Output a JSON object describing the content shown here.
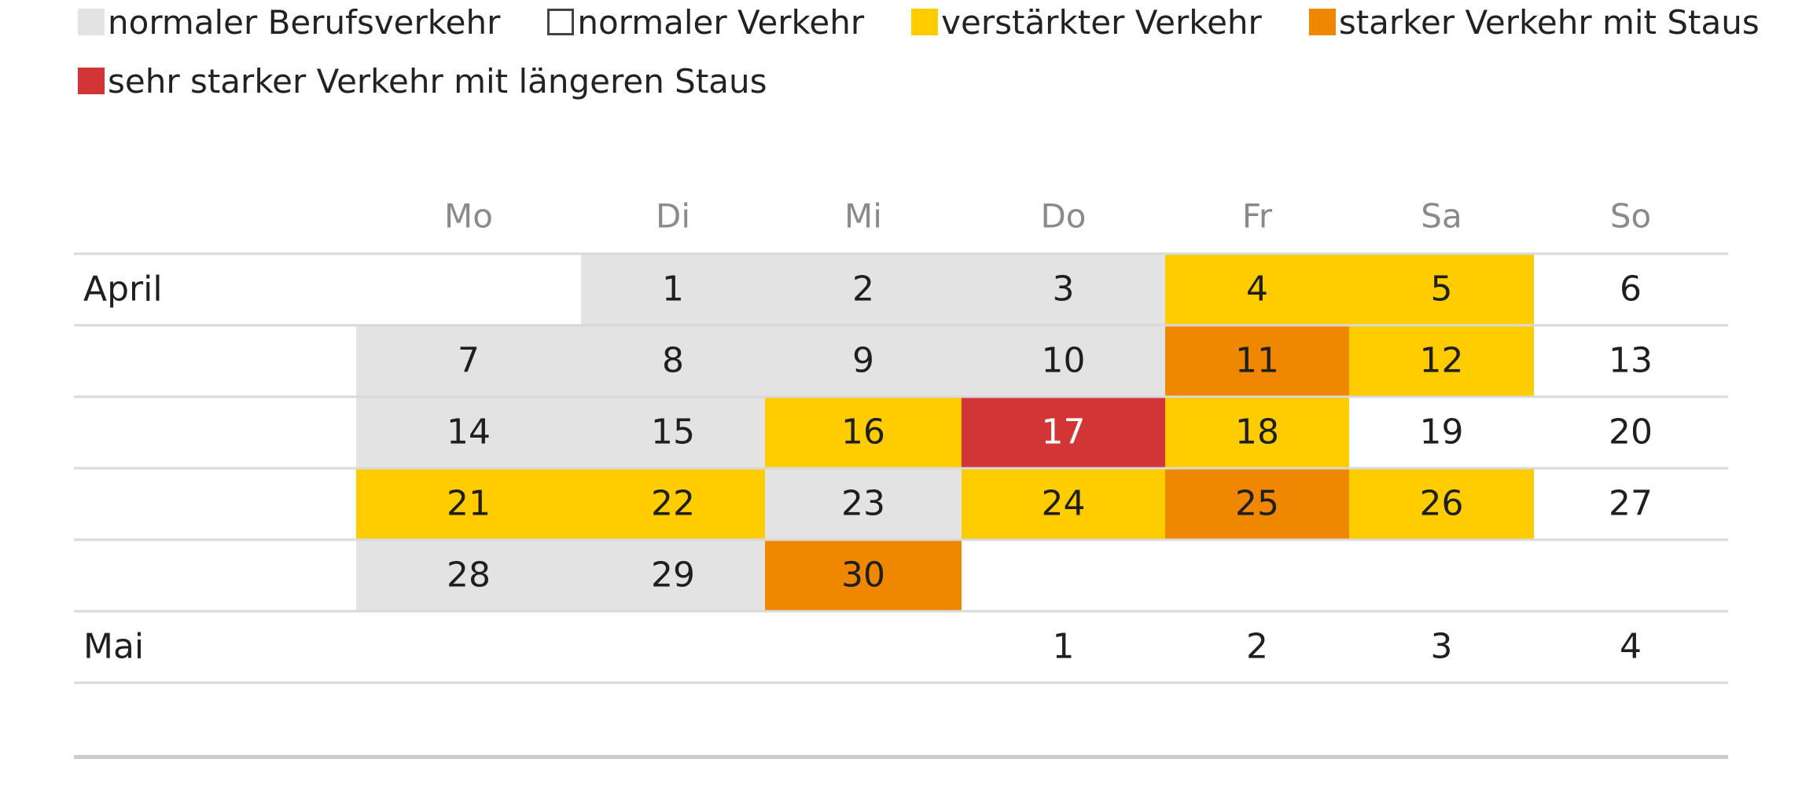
{
  "legend": [
    {
      "key": "berufsverkehr",
      "label": "normaler Berufsverkehr",
      "color": "#e3e3e3",
      "outline": false
    },
    {
      "key": "normal",
      "label": "normaler Verkehr",
      "color": "#ffffff",
      "outline": true
    },
    {
      "key": "verstaerkt",
      "label": "verstärkter Verkehr",
      "color": "#ffcc00",
      "outline": false
    },
    {
      "key": "stark",
      "label": "starker Verkehr mit Staus",
      "color": "#f08700",
      "outline": false
    },
    {
      "key": "sehrstark",
      "label": "sehr starker Verkehr mit längeren Staus",
      "color": "#d13535",
      "outline": false
    }
  ],
  "chart_data": {
    "type": "table",
    "columns": [
      "Mo",
      "Di",
      "Mi",
      "Do",
      "Fr",
      "Sa",
      "So"
    ],
    "rows": [
      {
        "label": "April",
        "cells": [
          {
            "day": "",
            "level": ""
          },
          {
            "day": "1",
            "level": "berufsverkehr"
          },
          {
            "day": "2",
            "level": "berufsverkehr"
          },
          {
            "day": "3",
            "level": "berufsverkehr"
          },
          {
            "day": "4",
            "level": "verstaerkt"
          },
          {
            "day": "5",
            "level": "verstaerkt"
          },
          {
            "day": "6",
            "level": "normal"
          }
        ]
      },
      {
        "label": "",
        "cells": [
          {
            "day": "7",
            "level": "berufsverkehr"
          },
          {
            "day": "8",
            "level": "berufsverkehr"
          },
          {
            "day": "9",
            "level": "berufsverkehr"
          },
          {
            "day": "10",
            "level": "berufsverkehr"
          },
          {
            "day": "11",
            "level": "stark"
          },
          {
            "day": "12",
            "level": "verstaerkt"
          },
          {
            "day": "13",
            "level": "normal"
          }
        ]
      },
      {
        "label": "",
        "cells": [
          {
            "day": "14",
            "level": "berufsverkehr"
          },
          {
            "day": "15",
            "level": "berufsverkehr"
          },
          {
            "day": "16",
            "level": "verstaerkt"
          },
          {
            "day": "17",
            "level": "sehrstark"
          },
          {
            "day": "18",
            "level": "verstaerkt"
          },
          {
            "day": "19",
            "level": "normal"
          },
          {
            "day": "20",
            "level": "normal"
          }
        ]
      },
      {
        "label": "",
        "cells": [
          {
            "day": "21",
            "level": "verstaerkt"
          },
          {
            "day": "22",
            "level": "verstaerkt"
          },
          {
            "day": "23",
            "level": "berufsverkehr"
          },
          {
            "day": "24",
            "level": "verstaerkt"
          },
          {
            "day": "25",
            "level": "stark"
          },
          {
            "day": "26",
            "level": "verstaerkt"
          },
          {
            "day": "27",
            "level": "normal"
          }
        ]
      },
      {
        "label": "",
        "cells": [
          {
            "day": "28",
            "level": "berufsverkehr"
          },
          {
            "day": "29",
            "level": "berufsverkehr"
          },
          {
            "day": "30",
            "level": "stark"
          },
          {
            "day": "",
            "level": ""
          },
          {
            "day": "",
            "level": ""
          },
          {
            "day": "",
            "level": ""
          },
          {
            "day": "",
            "level": ""
          }
        ]
      },
      {
        "label": "Mai",
        "cells": [
          {
            "day": "",
            "level": ""
          },
          {
            "day": "",
            "level": ""
          },
          {
            "day": "",
            "level": ""
          },
          {
            "day": "1",
            "level": "normal"
          },
          {
            "day": "2",
            "level": "normal"
          },
          {
            "day": "3",
            "level": "normal"
          },
          {
            "day": "4",
            "level": "normal"
          }
        ]
      }
    ]
  }
}
